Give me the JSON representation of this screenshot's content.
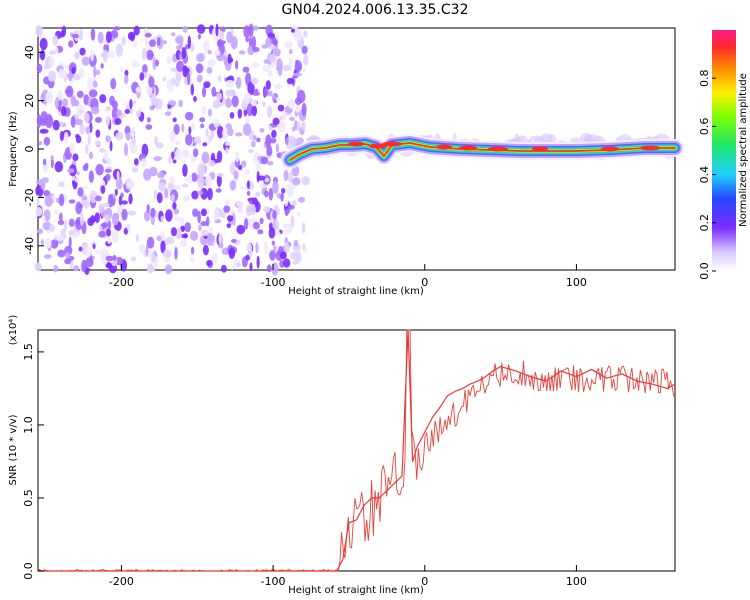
{
  "page": {
    "title": "GN04.2024.006.13.35.C32"
  },
  "colors": {
    "axis": "#000000",
    "snr_line": "#e53935",
    "purple": "#7a2cff"
  },
  "chart_data": [
    {
      "type": "heatmap",
      "title": "GN04.2024.006.13.35.C32",
      "xlabel": "Height of straight line (km)",
      "ylabel": "Frequency (Hz)",
      "xlim": [
        -255,
        165
      ],
      "ylim": [
        -50,
        50
      ],
      "x_ticks": [
        -200,
        -100,
        0,
        100
      ],
      "y_ticks": [
        -40,
        -20,
        0,
        20,
        40
      ],
      "colorbar": {
        "label": "Normalized spectral amplitude",
        "range": [
          0.0,
          1.0
        ],
        "ticks": [
          0.0,
          0.2,
          0.4,
          0.6,
          0.8
        ]
      }
    },
    {
      "type": "line",
      "xlabel": "Height of straight line (km)",
      "ylabel": "SNR (10 * v/v)",
      "y_scale_label": "(x10⁴)",
      "xlim": [
        -255,
        165
      ],
      "ylim": [
        0,
        1.65
      ],
      "x_ticks": [
        -200,
        -100,
        0,
        100
      ],
      "y_ticks": [
        0.0,
        0.5,
        1.0,
        1.5
      ],
      "series": [
        {
          "x": [
            -255,
            -200,
            -150,
            -100,
            -70,
            -58,
            -54,
            -50,
            -45,
            -40,
            -35,
            -30,
            -25,
            -20,
            -15,
            -11,
            -8,
            -5,
            0,
            5,
            10,
            15,
            20,
            25,
            30,
            35,
            40,
            45,
            50,
            60,
            70,
            80,
            90,
            100,
            110,
            120,
            130,
            140,
            150,
            160,
            165
          ],
          "y": [
            0.0,
            0.0,
            0.0,
            0.0,
            0.0,
            0.0,
            0.08,
            0.33,
            0.35,
            0.45,
            0.5,
            0.5,
            0.55,
            0.6,
            0.65,
            1.65,
            0.75,
            0.85,
            0.95,
            1.05,
            1.12,
            1.2,
            1.23,
            1.25,
            1.28,
            1.3,
            1.33,
            1.37,
            1.4,
            1.37,
            1.33,
            1.3,
            1.37,
            1.33,
            1.38,
            1.32,
            1.35,
            1.3,
            1.28,
            1.25,
            1.28
          ]
        }
      ]
    }
  ],
  "ui": {
    "top_xlabel": "Height of straight line (km)",
    "bottom_xlabel": "Height of straight line (km)",
    "top_ylabel": "Frequency (Hz)",
    "bottom_ylabel": "SNR (10 * v/v)",
    "bottom_scale_label": "(x10⁴)",
    "colorbar_label": "Normalized spectral amplitude"
  }
}
